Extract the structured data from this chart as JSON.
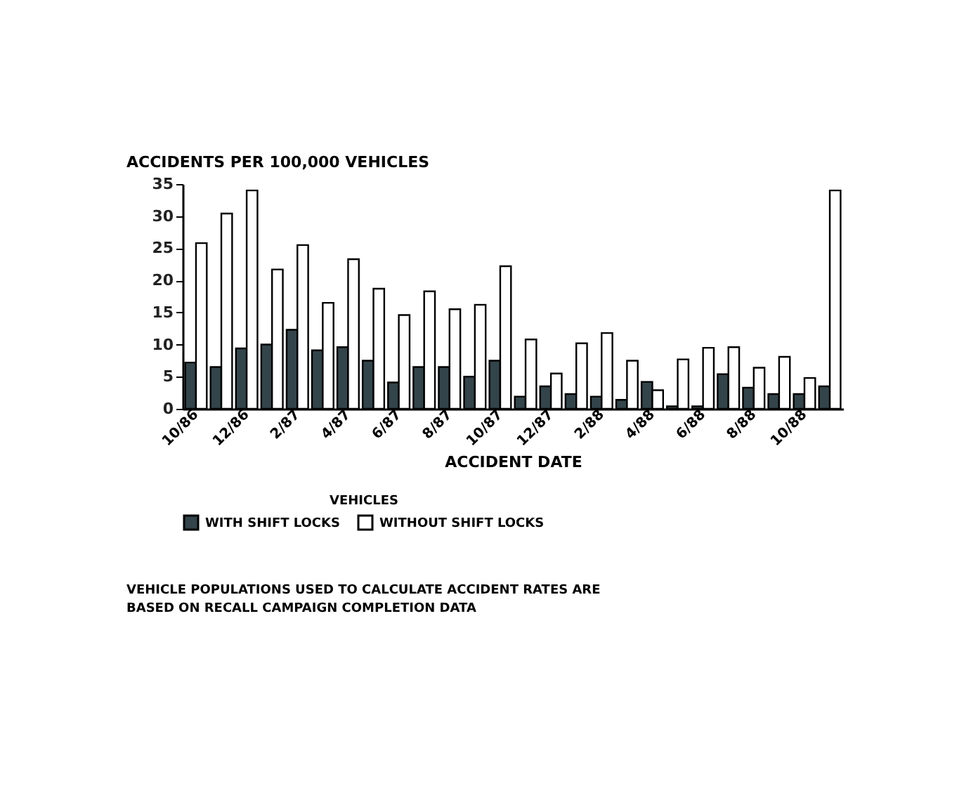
{
  "chart_data": {
    "type": "bar",
    "title": "ACCIDENTS PER 100,000 VEHICLES",
    "xlabel": "ACCIDENT DATE",
    "legend_title": "VEHICLES",
    "legend": "bottom",
    "grid": false,
    "categories": [
      "10/86",
      null,
      "12/86",
      null,
      "2/87",
      null,
      "4/87",
      null,
      "6/87",
      null,
      "8/87",
      null,
      "10/87",
      null,
      "12/87",
      null,
      "2/88",
      null,
      "4/88",
      null,
      "6/88",
      null,
      "8/88",
      null,
      "10/88",
      null
    ],
    "series": [
      {
        "name": "WITH SHIFT LOCKS",
        "color": "#33444a",
        "values": [
          7.2,
          6.5,
          9.4,
          10,
          12.3,
          9.1,
          9.6,
          7.5,
          4.1,
          6.5,
          6.5,
          5,
          7.5,
          1.9,
          3.5,
          2.3,
          1.9,
          1.4,
          4.2,
          0.4,
          0.4,
          5.4,
          3.3,
          2.3,
          2.3,
          3.5
        ]
      },
      {
        "name": "WITHOUT SHIFT LOCKS",
        "color": "#ffffff",
        "values": [
          25.8,
          30.4,
          34,
          21.7,
          25.5,
          16.5,
          23.3,
          18.7,
          14.6,
          18.3,
          15.5,
          16.2,
          22.2,
          10.8,
          5.5,
          10.2,
          11.8,
          7.5,
          2.9,
          7.7,
          9.5,
          9.6,
          6.4,
          8.1,
          4.8,
          34
        ]
      }
    ],
    "ylim": [
      0,
      35
    ],
    "yticks": [
      0,
      5,
      10,
      15,
      20,
      25,
      30,
      35
    ],
    "annotations": [
      "VEHICLE POPULATIONS USED TO CALCULATE ACCIDENT RATES ARE BASED ON RECALL CAMPAIGN COMPLETION DATA"
    ]
  }
}
